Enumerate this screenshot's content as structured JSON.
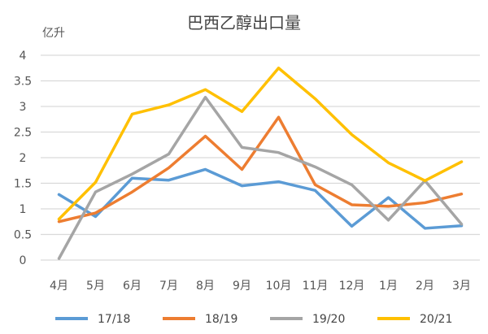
{
  "chart_data": {
    "type": "line",
    "title": "巴西乙醇出口量",
    "ylabel": "亿升",
    "xlabel": "",
    "categories": [
      "4月",
      "5月",
      "6月",
      "7月",
      "8月",
      "9月",
      "10月",
      "11月",
      "12月",
      "1月",
      "2月",
      "3月"
    ],
    "ylim": [
      0,
      4
    ],
    "yticks": [
      0,
      0.5,
      1,
      1.5,
      2,
      2.5,
      3,
      3.5,
      4
    ],
    "grid": true,
    "legend_position": "bottom",
    "series": [
      {
        "name": "17/18",
        "color": "#5b9bd5",
        "values": [
          1.28,
          0.85,
          1.6,
          1.56,
          1.77,
          1.45,
          1.53,
          1.36,
          0.66,
          1.22,
          0.62,
          0.67
        ]
      },
      {
        "name": "18/19",
        "color": "#ed7d31",
        "values": [
          0.75,
          0.92,
          1.33,
          1.8,
          2.42,
          1.77,
          2.79,
          1.47,
          1.08,
          1.05,
          1.12,
          1.29
        ]
      },
      {
        "name": "19/20",
        "color": "#a5a5a5",
        "values": [
          0.03,
          1.33,
          1.68,
          2.07,
          3.18,
          2.2,
          2.1,
          1.82,
          1.47,
          0.78,
          1.55,
          0.7
        ]
      },
      {
        "name": "20/21",
        "color": "#ffc000",
        "values": [
          0.8,
          1.52,
          2.85,
          3.03,
          3.33,
          2.9,
          3.75,
          3.15,
          2.45,
          1.9,
          1.55,
          1.92
        ]
      }
    ]
  }
}
